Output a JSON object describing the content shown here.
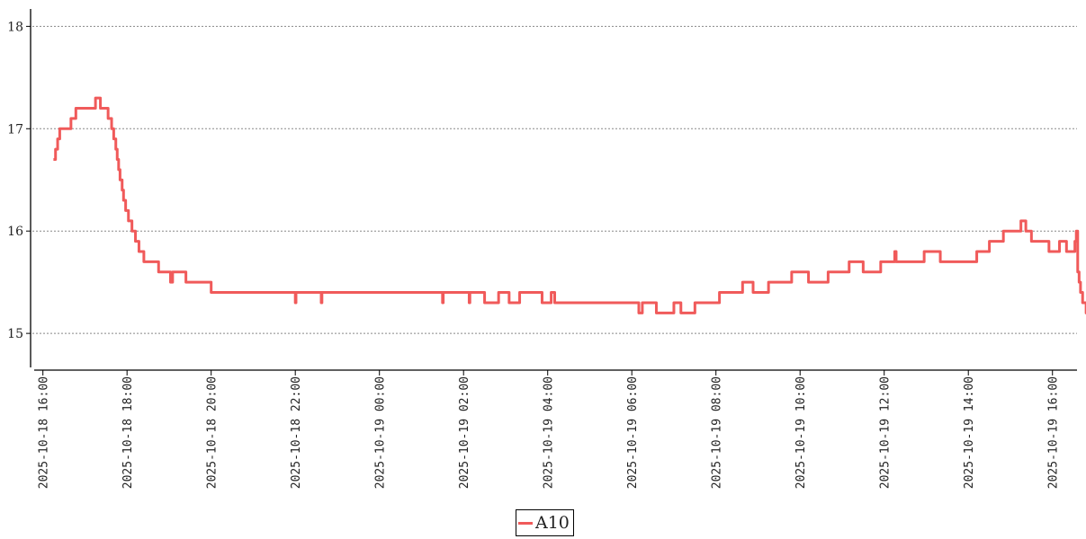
{
  "chart_data": {
    "type": "line",
    "title": "",
    "xlabel": "",
    "ylabel": "",
    "ylim": [
      14.65,
      18.17
    ],
    "xlim": [
      "2025-10-18 15:45",
      "2025-10-19 16:35"
    ],
    "grid": "horizontal-dotted",
    "legend_position": "bottom-center",
    "y_ticks": [
      15,
      16,
      17,
      18
    ],
    "x_ticks": [
      "2025-10-18 16:00",
      "2025-10-18 18:00",
      "2025-10-18 20:00",
      "2025-10-18 22:00",
      "2025-10-19 00:00",
      "2025-10-19 02:00",
      "2025-10-19 04:00",
      "2025-10-19 06:00",
      "2025-10-19 08:00",
      "2025-10-19 10:00",
      "2025-10-19 12:00",
      "2025-10-19 14:00",
      "2025-10-19 16:00"
    ],
    "series": [
      {
        "name": "A10",
        "color": "#f05a5a",
        "step": true,
        "points": [
          [
            "2025-10-18 16:15",
            16.7
          ],
          [
            "2025-10-18 16:18",
            16.8
          ],
          [
            "2025-10-18 16:21",
            16.9
          ],
          [
            "2025-10-18 16:24",
            17.0
          ],
          [
            "2025-10-18 16:40",
            17.1
          ],
          [
            "2025-10-18 16:47",
            17.2
          ],
          [
            "2025-10-18 17:15",
            17.3
          ],
          [
            "2025-10-18 17:22",
            17.2
          ],
          [
            "2025-10-18 17:33",
            17.1
          ],
          [
            "2025-10-18 17:38",
            17.0
          ],
          [
            "2025-10-18 17:41",
            16.9
          ],
          [
            "2025-10-18 17:44",
            16.8
          ],
          [
            "2025-10-18 17:46",
            16.7
          ],
          [
            "2025-10-18 17:48",
            16.6
          ],
          [
            "2025-10-18 17:50",
            16.5
          ],
          [
            "2025-10-18 17:53",
            16.4
          ],
          [
            "2025-10-18 17:55",
            16.3
          ],
          [
            "2025-10-18 17:58",
            16.2
          ],
          [
            "2025-10-18 18:02",
            16.1
          ],
          [
            "2025-10-18 18:07",
            16.0
          ],
          [
            "2025-10-18 18:12",
            15.9
          ],
          [
            "2025-10-18 18:17",
            15.8
          ],
          [
            "2025-10-18 18:24",
            15.7
          ],
          [
            "2025-10-18 18:45",
            15.6
          ],
          [
            "2025-10-18 19:02",
            15.5
          ],
          [
            "2025-10-18 19:05",
            15.6
          ],
          [
            "2025-10-18 19:24",
            15.5
          ],
          [
            "2025-10-18 20:00",
            15.4
          ],
          [
            "2025-10-18 22:00",
            15.3
          ],
          [
            "2025-10-18 22:01",
            15.4
          ],
          [
            "2025-10-18 22:37",
            15.3
          ],
          [
            "2025-10-18 22:38",
            15.4
          ],
          [
            "2025-10-19 01:30",
            15.3
          ],
          [
            "2025-10-19 01:31",
            15.4
          ],
          [
            "2025-10-19 02:08",
            15.3
          ],
          [
            "2025-10-19 02:09",
            15.4
          ],
          [
            "2025-10-19 02:30",
            15.3
          ],
          [
            "2025-10-19 02:50",
            15.4
          ],
          [
            "2025-10-19 03:05",
            15.3
          ],
          [
            "2025-10-19 03:20",
            15.4
          ],
          [
            "2025-10-19 03:52",
            15.3
          ],
          [
            "2025-10-19 04:05",
            15.4
          ],
          [
            "2025-10-19 04:10",
            15.3
          ],
          [
            "2025-10-19 06:10",
            15.2
          ],
          [
            "2025-10-19 06:15",
            15.3
          ],
          [
            "2025-10-19 06:35",
            15.2
          ],
          [
            "2025-10-19 07:00",
            15.3
          ],
          [
            "2025-10-19 07:10",
            15.2
          ],
          [
            "2025-10-19 07:30",
            15.3
          ],
          [
            "2025-10-19 08:05",
            15.4
          ],
          [
            "2025-10-19 08:38",
            15.5
          ],
          [
            "2025-10-19 08:53",
            15.4
          ],
          [
            "2025-10-19 09:15",
            15.5
          ],
          [
            "2025-10-19 09:48",
            15.6
          ],
          [
            "2025-10-19 10:12",
            15.5
          ],
          [
            "2025-10-19 10:40",
            15.6
          ],
          [
            "2025-10-19 11:10",
            15.7
          ],
          [
            "2025-10-19 11:30",
            15.6
          ],
          [
            "2025-10-19 11:55",
            15.7
          ],
          [
            "2025-10-19 12:15",
            15.8
          ],
          [
            "2025-10-19 12:17",
            15.7
          ],
          [
            "2025-10-19 12:57",
            15.8
          ],
          [
            "2025-10-19 13:20",
            15.7
          ],
          [
            "2025-10-19 14:12",
            15.8
          ],
          [
            "2025-10-19 14:30",
            15.9
          ],
          [
            "2025-10-19 14:50",
            16.0
          ],
          [
            "2025-10-19 15:15",
            16.1
          ],
          [
            "2025-10-19 15:22",
            16.0
          ],
          [
            "2025-10-19 15:30",
            15.9
          ],
          [
            "2025-10-19 15:55",
            15.8
          ],
          [
            "2025-10-19 16:10",
            15.9
          ],
          [
            "2025-10-19 16:20",
            15.8
          ],
          [
            "2025-10-19 16:32",
            15.9
          ],
          [
            "2025-10-19 16:34",
            16.0
          ],
          [
            "2025-10-19 16:36",
            15.6
          ],
          [
            "2025-10-19 16:38",
            15.5
          ],
          [
            "2025-10-19 16:40",
            15.4
          ],
          [
            "2025-10-19 16:43",
            15.3
          ],
          [
            "2025-10-19 16:48",
            15.2
          ],
          [
            "2025-10-19 16:52",
            15.2
          ]
        ]
      }
    ]
  }
}
